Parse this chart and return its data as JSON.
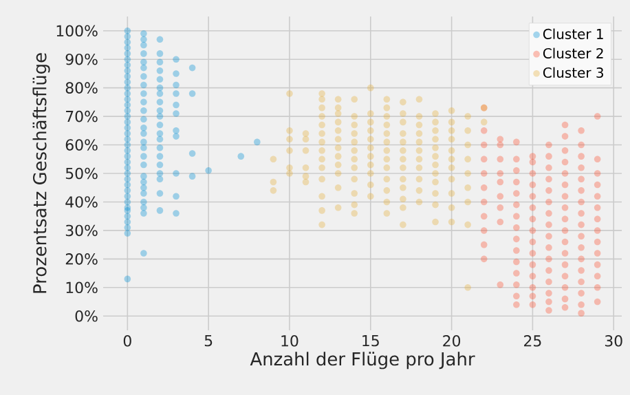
{
  "chart_data": {
    "type": "scatter",
    "xlabel": "Anzahl der Flüge pro Jahr",
    "ylabel": "Prozentsatz Geschäftsflüge",
    "xlim": [
      -1.5,
      30.5
    ],
    "xticks": [
      0,
      5,
      10,
      15,
      20,
      25,
      30
    ],
    "ylim": [
      -5,
      105
    ],
    "yticks": [
      {
        "value": 0,
        "label": "0%"
      },
      {
        "value": 10,
        "label": "10%"
      },
      {
        "value": 20,
        "label": "20%"
      },
      {
        "value": 30,
        "label": "30%"
      },
      {
        "value": 40,
        "label": "40%"
      },
      {
        "value": 50,
        "label": "50%"
      },
      {
        "value": 60,
        "label": "60%"
      },
      {
        "value": 70,
        "label": "70%"
      },
      {
        "value": 80,
        "label": "80%"
      },
      {
        "value": 90,
        "label": "90%"
      },
      {
        "value": 100,
        "label": "100%"
      }
    ],
    "grid": true,
    "legend": "top right",
    "marker": "circle",
    "series": [
      {
        "name": "Cluster 1",
        "color": "#008fd5",
        "x": [
          0,
          0,
          0,
          0,
          0,
          0,
          0,
          0,
          0,
          0,
          0,
          0,
          0,
          0,
          0,
          0,
          0,
          0,
          0,
          0,
          0,
          0,
          0,
          0,
          0,
          0,
          0,
          0,
          0,
          0,
          0,
          0,
          0,
          0,
          0,
          0,
          0,
          0,
          1,
          1,
          1,
          1,
          1,
          1,
          1,
          1,
          1,
          1,
          1,
          1,
          1,
          1,
          1,
          1,
          1,
          1,
          1,
          1,
          1,
          1,
          1,
          1,
          1,
          1,
          2,
          2,
          2,
          2,
          2,
          2,
          2,
          2,
          2,
          2,
          2,
          2,
          2,
          2,
          2,
          2,
          2,
          2,
          2,
          2,
          3,
          3,
          3,
          3,
          3,
          3,
          3,
          3,
          3,
          3,
          3,
          4,
          4,
          4,
          4,
          5,
          7,
          8
        ],
        "values": [
          13,
          29,
          31,
          33,
          35,
          37,
          38,
          40,
          42,
          44,
          46,
          48,
          50,
          52,
          54,
          56,
          58,
          60,
          62,
          64,
          66,
          68,
          70,
          72,
          74,
          76,
          78,
          80,
          82,
          84,
          86,
          88,
          90,
          92,
          94,
          96,
          98,
          100,
          22,
          36,
          38,
          40,
          43,
          45,
          47,
          49,
          53,
          56,
          59,
          61,
          64,
          66,
          69,
          72,
          75,
          78,
          81,
          84,
          87,
          89,
          92,
          95,
          97,
          99,
          37,
          43,
          48,
          50,
          53,
          56,
          59,
          62,
          64,
          67,
          70,
          72,
          75,
          78,
          80,
          83,
          86,
          89,
          92,
          97,
          36,
          42,
          50,
          63,
          65,
          71,
          74,
          78,
          81,
          85,
          90,
          49,
          57,
          78,
          87,
          51,
          56,
          61
        ]
      },
      {
        "name": "Cluster 2",
        "color": "#fc4f30",
        "x": [
          22,
          22,
          22,
          22,
          22,
          22,
          22,
          22,
          22,
          22,
          22,
          23,
          23,
          23,
          23,
          23,
          23,
          23,
          23,
          23,
          24,
          24,
          24,
          24,
          24,
          24,
          24,
          24,
          24,
          24,
          24,
          24,
          24,
          24,
          24,
          25,
          25,
          25,
          25,
          25,
          25,
          25,
          25,
          25,
          25,
          25,
          25,
          25,
          25,
          25,
          26,
          26,
          26,
          26,
          26,
          26,
          26,
          26,
          26,
          26,
          26,
          26,
          26,
          26,
          26,
          26,
          27,
          27,
          27,
          27,
          27,
          27,
          27,
          27,
          27,
          27,
          27,
          27,
          27,
          27,
          27,
          27,
          27,
          28,
          28,
          28,
          28,
          28,
          28,
          28,
          28,
          28,
          28,
          28,
          28,
          28,
          28,
          28,
          28,
          28,
          29,
          29,
          29,
          29,
          29,
          29,
          29,
          29,
          29,
          29,
          29,
          29,
          29,
          29
        ],
        "values": [
          20,
          25,
          30,
          35,
          40,
          45,
          50,
          55,
          60,
          65,
          73,
          11,
          33,
          38,
          42,
          47,
          50,
          55,
          60,
          62,
          4,
          7,
          11,
          15,
          19,
          23,
          27,
          31,
          35,
          39,
          43,
          47,
          51,
          55,
          61,
          4,
          7,
          10,
          14,
          18,
          22,
          26,
          30,
          34,
          38,
          42,
          46,
          50,
          54,
          56,
          2,
          5,
          8,
          12,
          16,
          20,
          24,
          28,
          32,
          36,
          40,
          44,
          48,
          52,
          56,
          60,
          3,
          6,
          10,
          14,
          18,
          22,
          26,
          30,
          34,
          38,
          42,
          46,
          50,
          54,
          58,
          63,
          67,
          1,
          4,
          8,
          12,
          16,
          20,
          24,
          28,
          32,
          36,
          40,
          44,
          48,
          52,
          56,
          60,
          65,
          5,
          10,
          14,
          18,
          22,
          26,
          30,
          34,
          38,
          42,
          46,
          50,
          55,
          70
        ]
      },
      {
        "name": "Cluster 3",
        "color": "#e5ae38",
        "x": [
          9,
          9,
          9,
          10,
          10,
          10,
          10,
          10,
          10,
          11,
          11,
          11,
          11,
          11,
          11,
          12,
          12,
          12,
          12,
          12,
          12,
          12,
          12,
          12,
          12,
          12,
          12,
          12,
          12,
          13,
          13,
          13,
          13,
          13,
          13,
          13,
          13,
          13,
          13,
          13,
          13,
          14,
          14,
          14,
          14,
          14,
          14,
          14,
          14,
          14,
          14,
          14,
          14,
          15,
          15,
          15,
          15,
          15,
          15,
          15,
          15,
          15,
          15,
          15,
          16,
          16,
          16,
          16,
          16,
          16,
          16,
          16,
          16,
          16,
          16,
          16,
          16,
          17,
          17,
          17,
          17,
          17,
          17,
          17,
          17,
          17,
          17,
          17,
          17,
          17,
          18,
          18,
          18,
          18,
          18,
          18,
          18,
          18,
          18,
          18,
          18,
          19,
          19,
          19,
          19,
          19,
          19,
          19,
          19,
          19,
          19,
          19,
          19,
          20,
          20,
          20,
          20,
          20,
          20,
          20,
          20,
          20,
          20,
          20,
          21,
          21,
          21,
          21,
          21,
          21,
          21,
          21,
          21,
          22,
          22
        ],
        "values": [
          44,
          47,
          55,
          50,
          52,
          58,
          62,
          65,
          78,
          47,
          49,
          52,
          58,
          62,
          64,
          32,
          37,
          42,
          48,
          52,
          55,
          58,
          61,
          64,
          67,
          70,
          73,
          76,
          78,
          38,
          45,
          50,
          53,
          56,
          59,
          62,
          65,
          68,
          71,
          73,
          76,
          36,
          39,
          43,
          48,
          52,
          55,
          58,
          61,
          64,
          67,
          70,
          76,
          42,
          46,
          50,
          53,
          56,
          59,
          62,
          65,
          68,
          71,
          80,
          36,
          40,
          44,
          48,
          52,
          55,
          58,
          61,
          64,
          67,
          70,
          73,
          76,
          32,
          38,
          41,
          45,
          48,
          52,
          55,
          58,
          61,
          64,
          68,
          71,
          75,
          40,
          44,
          48,
          52,
          55,
          58,
          61,
          64,
          67,
          70,
          76,
          33,
          39,
          43,
          47,
          50,
          53,
          56,
          59,
          62,
          65,
          68,
          71,
          33,
          38,
          43,
          48,
          52,
          55,
          58,
          62,
          65,
          68,
          72,
          10,
          32,
          40,
          45,
          50,
          55,
          60,
          65,
          70,
          68,
          73
        ]
      }
    ]
  }
}
